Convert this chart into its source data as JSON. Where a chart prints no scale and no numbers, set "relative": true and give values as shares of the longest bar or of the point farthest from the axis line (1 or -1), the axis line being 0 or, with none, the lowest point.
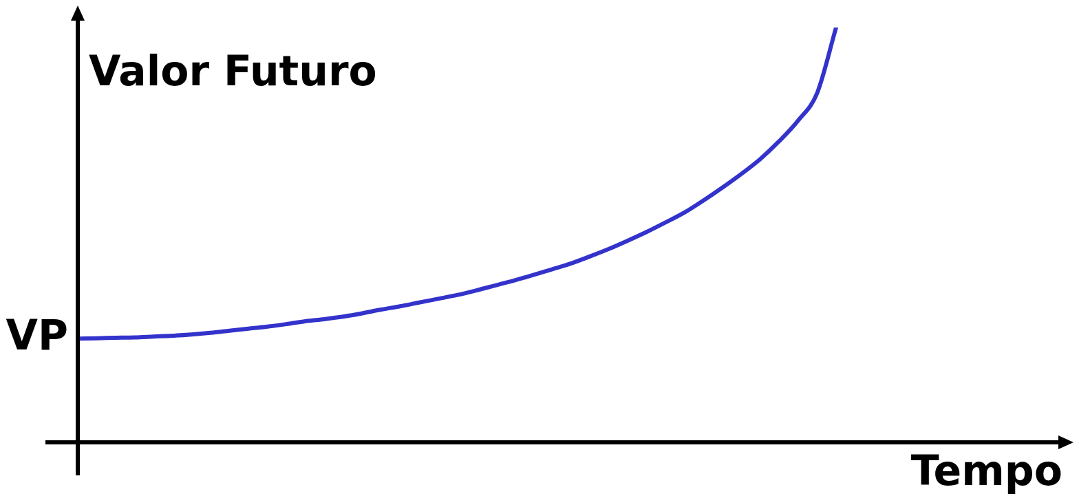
{
  "chart_data": {
    "type": "line",
    "relative": true,
    "xlabel": "Tempo",
    "ylabel": "Valor Futuro",
    "annotations": [
      "VP"
    ],
    "categories": [
      null,
      null,
      null,
      null,
      null,
      null,
      null,
      null,
      null,
      null,
      null,
      null,
      null,
      null,
      null,
      null,
      null,
      null,
      null,
      null,
      null,
      null,
      null,
      null,
      null,
      null,
      null,
      null,
      null,
      null,
      null,
      null,
      null,
      null,
      null,
      null,
      null,
      null,
      null,
      null,
      null
    ],
    "series": [
      {
        "color": "#3333cc",
        "values": [
          0.25,
          0.251,
          0.252,
          0.253,
          0.255,
          0.257,
          0.26,
          0.264,
          0.269,
          0.274,
          0.279,
          0.285,
          0.292,
          0.297,
          0.303,
          0.311,
          0.32,
          0.328,
          0.337,
          0.346,
          0.355,
          0.366,
          0.378,
          0.39,
          0.403,
          0.417,
          0.431,
          0.448,
          0.466,
          0.486,
          0.507,
          0.53,
          0.554,
          0.583,
          0.614,
          0.647,
          0.683,
          0.726,
          0.776,
          0.842,
          1
        ]
      }
    ],
    "legend": false,
    "marker": "none",
    "line_style": "solid"
  }
}
